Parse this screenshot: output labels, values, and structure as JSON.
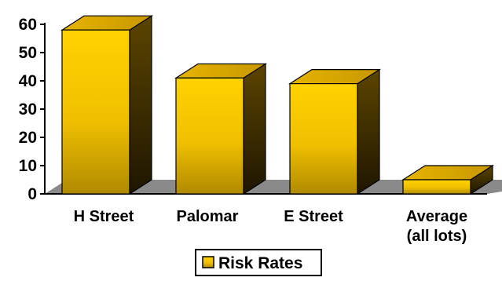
{
  "chart_data": {
    "type": "bar",
    "categories": [
      [
        "H Street"
      ],
      [
        "Palomar"
      ],
      [
        "E Street"
      ],
      [
        "Average",
        "(all lots)"
      ]
    ],
    "series": [
      {
        "name": "Risk Rates",
        "values": [
          58,
          41,
          39,
          5
        ]
      }
    ],
    "ylim": [
      0,
      60
    ],
    "yticks": [
      0,
      10,
      20,
      30,
      40,
      50,
      60
    ],
    "grid": false,
    "style": "3d-bar",
    "legend_position": "bottom",
    "colors": {
      "bar_front_top": "#ffd200",
      "bar_front_bottom": "#b08a00",
      "bar_top": "#d9a800",
      "bar_side_top": "#5c4500",
      "bar_side_bottom": "#1f1600",
      "floor": "#8a8a8a",
      "axis": "#000000"
    }
  }
}
